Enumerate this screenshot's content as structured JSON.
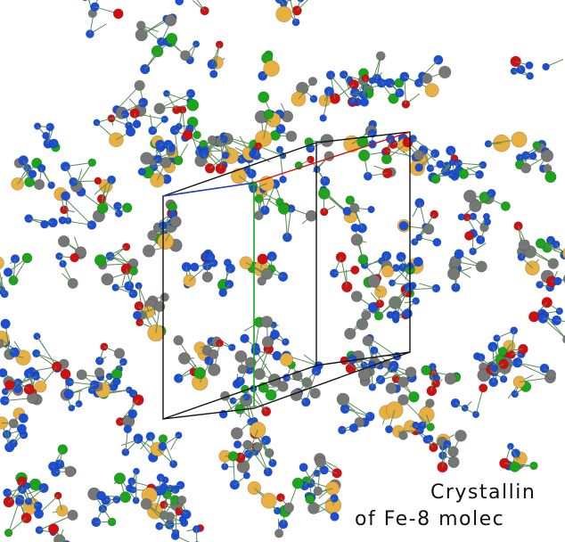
{
  "caption": {
    "lines": [
      "Crystallin",
      "of Fe-8 molec"
    ]
  }
}
